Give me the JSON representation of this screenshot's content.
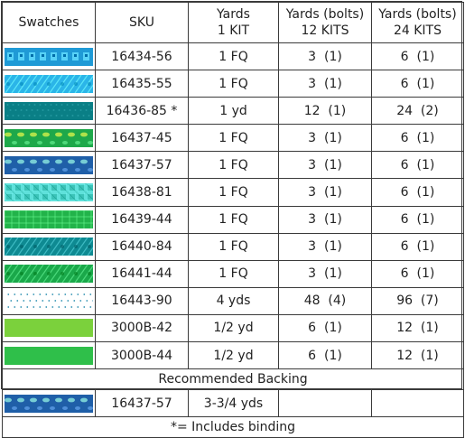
{
  "headers": {
    "swatches": "Swatches",
    "sku": "SKU",
    "yards_1kit_line1": "Yards",
    "yards_1kit_line2": "1 KIT",
    "yards_12kits_line1": "Yards (bolts)",
    "yards_12kits_line2": "12 KITS",
    "yards_24kits_line1": "Yards (bolts)",
    "yards_24kits_line2": "24 KITS"
  },
  "rows": [
    {
      "sku": "16434-56",
      "kit1": "1 FQ",
      "kit12": "3  (1)",
      "kit24": "6  (1)",
      "swatch": {
        "color": "#1f9ad6",
        "pattern": "blue-icons"
      }
    },
    {
      "sku": "16435-55",
      "kit1": "1 FQ",
      "kit12": "3  (1)",
      "kit24": "6  (1)",
      "swatch": {
        "color": "#2bb5e8",
        "pattern": "light-blue-lines"
      }
    },
    {
      "sku": "16436-85 *",
      "kit1": "1 yd",
      "kit12": "12  (1)",
      "kit24": "24  (2)",
      "swatch": {
        "color": "#0a7f86",
        "pattern": "teal-texture"
      }
    },
    {
      "sku": "16437-45",
      "kit1": "1 FQ",
      "kit12": "3  (1)",
      "kit24": "6  (1)",
      "swatch": {
        "color": "#1ea84a",
        "pattern": "green-scatter"
      }
    },
    {
      "sku": "16437-57",
      "kit1": "1 FQ",
      "kit12": "3  (1)",
      "kit24": "6  (1)",
      "swatch": {
        "color": "#1f5fa8",
        "pattern": "navy-scatter"
      }
    },
    {
      "sku": "16438-81",
      "kit1": "1 FQ",
      "kit12": "3  (1)",
      "kit24": "6  (1)",
      "swatch": {
        "color": "#3cc3b8",
        "pattern": "aqua-tiles"
      }
    },
    {
      "sku": "16439-44",
      "kit1": "1 FQ",
      "kit12": "3  (1)",
      "kit24": "6  (1)",
      "swatch": {
        "color": "#22b34a",
        "pattern": "green-grid"
      }
    },
    {
      "sku": "16440-84",
      "kit1": "1 FQ",
      "kit12": "3  (1)",
      "kit24": "6  (1)",
      "swatch": {
        "color": "#0e8a92",
        "pattern": "teal-lines"
      }
    },
    {
      "sku": "16441-44",
      "kit1": "1 FQ",
      "kit12": "3  (1)",
      "kit24": "6  (1)",
      "swatch": {
        "color": "#1aa84a",
        "pattern": "green-lines"
      }
    },
    {
      "sku": "16443-90",
      "kit1": "4 yds",
      "kit12": "48  (4)",
      "kit24": "96  (7)",
      "swatch": {
        "color": "#ffffff",
        "pattern": "white-dots"
      }
    },
    {
      "sku": "3000B-42",
      "kit1": "1/2 yd",
      "kit12": "6  (1)",
      "kit24": "12  (1)",
      "swatch": {
        "color": "#7bd13c",
        "pattern": "solid"
      }
    },
    {
      "sku": "3000B-44",
      "kit1": "1/2 yd",
      "kit12": "6  (1)",
      "kit24": "12  (1)",
      "swatch": {
        "color": "#2fbf4a",
        "pattern": "solid"
      }
    }
  ],
  "backing": {
    "title": "Recommended Backing",
    "sku": "16437-57",
    "kit1": "3-3/4 yds",
    "kit12": "",
    "kit24": "",
    "swatch": {
      "color": "#1f5fa8",
      "pattern": "navy-scatter"
    }
  },
  "footnote": "*= Includes binding"
}
